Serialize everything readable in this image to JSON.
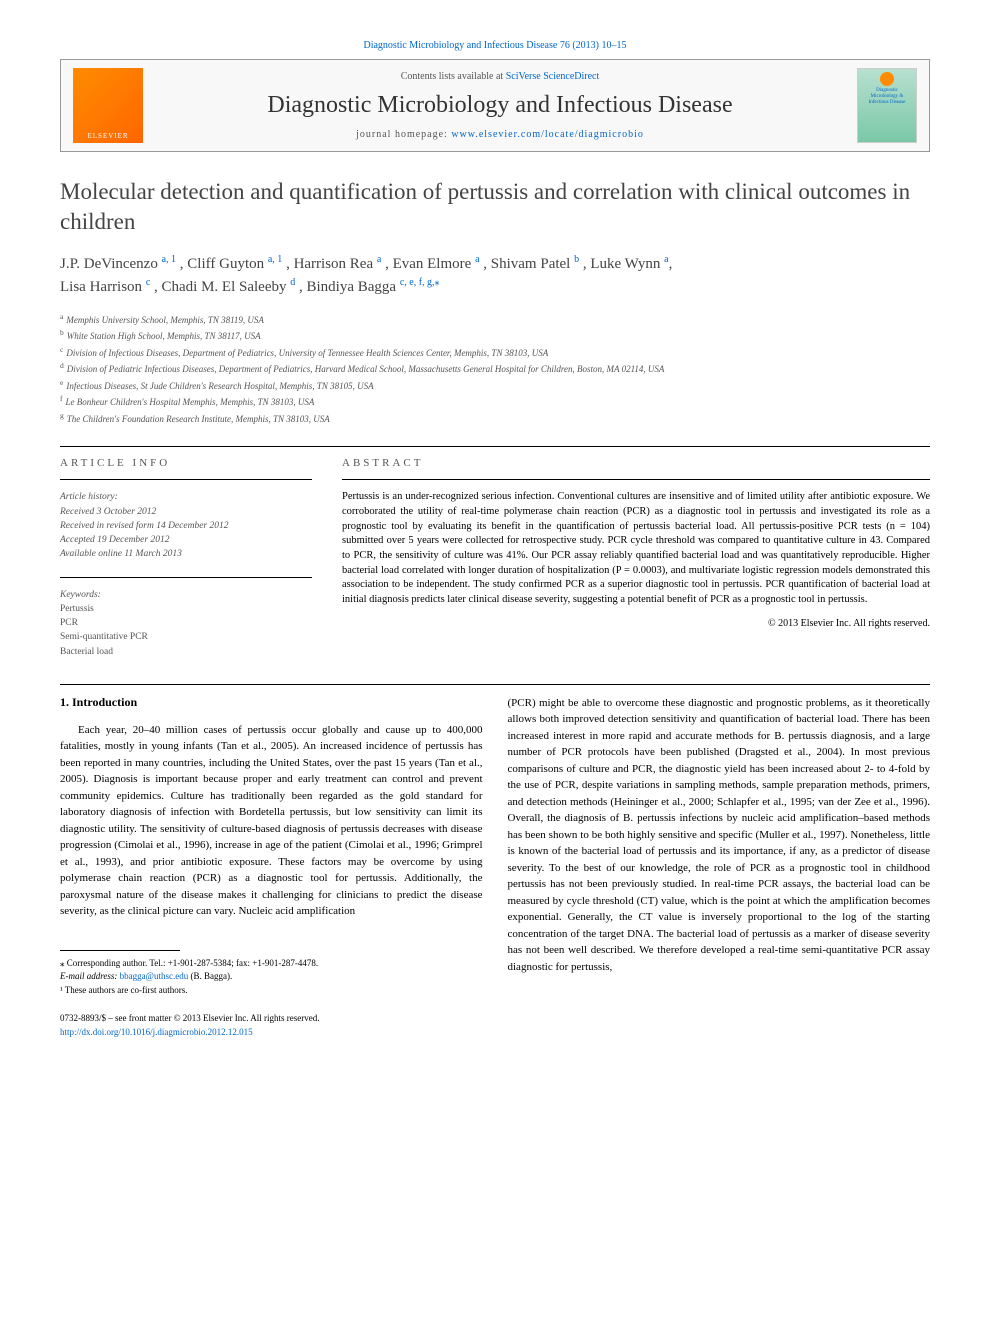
{
  "topLink": "Diagnostic Microbiology and Infectious Disease 76 (2013) 10–15",
  "header": {
    "elsevier": "ELSEVIER",
    "contentsPrefix": "Contents lists available at ",
    "contentsLink": "SciVerse ScienceDirect",
    "journalName": "Diagnostic Microbiology and Infectious Disease",
    "homepagePrefix": "journal homepage: ",
    "homepageLink": "www.elsevier.com/locate/diagmicrobio",
    "coverLine1": "Diagnostic",
    "coverLine2": "Microbiology &",
    "coverLine3": "Infectious Disease"
  },
  "title": "Molecular detection and quantification of pertussis and correlation with clinical outcomes in children",
  "authors": {
    "a1": "J.P. DeVincenzo ",
    "a1sup": "a, 1",
    "a2": ", Cliff Guyton ",
    "a2sup": "a, 1",
    "a3": ", Harrison Rea ",
    "a3sup": "a",
    "a4": ", Evan Elmore ",
    "a4sup": "a",
    "a5": ", Shivam Patel ",
    "a5sup": "b",
    "a6": ", Luke Wynn ",
    "a6sup": "a",
    "a7": "Lisa Harrison ",
    "a7sup": "c",
    "a8": ", Chadi M. El Saleeby ",
    "a8sup": "d",
    "a9": ", Bindiya Bagga ",
    "a9sup": "c, e, f, g,",
    "star": "⁎"
  },
  "affiliations": {
    "a": "Memphis University School, Memphis, TN 38119, USA",
    "b": "White Station High School, Memphis, TN 38117, USA",
    "c": "Division of Infectious Diseases, Department of Pediatrics, University of Tennessee Health Sciences Center, Memphis, TN 38103, USA",
    "d": "Division of Pediatric Infectious Diseases, Department of Pediatrics, Harvard Medical School, Massachusetts General Hospital for Children, Boston, MA 02114, USA",
    "e": "Infectious Diseases, St Jude Children's Research Hospital, Memphis, TN 38105, USA",
    "f": "Le Bonheur Children's Hospital Memphis, Memphis, TN 38103, USA",
    "g": "The Children's Foundation Research Institute, Memphis, TN 38103, USA"
  },
  "articleInfo": {
    "heading": "ARTICLE INFO",
    "historyLabel": "Article history:",
    "received": "Received 3 October 2012",
    "revised": "Received in revised form 14 December 2012",
    "accepted": "Accepted 19 December 2012",
    "online": "Available online 11 March 2013",
    "keywordsLabel": "Keywords:",
    "kw1": "Pertussis",
    "kw2": "PCR",
    "kw3": "Semi-quantitative PCR",
    "kw4": "Bacterial load"
  },
  "abstract": {
    "heading": "ABSTRACT",
    "text": "Pertussis is an under-recognized serious infection. Conventional cultures are insensitive and of limited utility after antibiotic exposure. We corroborated the utility of real-time polymerase chain reaction (PCR) as a diagnostic tool in pertussis and investigated its role as a prognostic tool by evaluating its benefit in the quantification of pertussis bacterial load. All pertussis-positive PCR tests (n = 104) submitted over 5 years were collected for retrospective study. PCR cycle threshold was compared to quantitative culture in 43. Compared to PCR, the sensitivity of culture was 41%. Our PCR assay reliably quantified bacterial load and was quantitatively reproducible. Higher bacterial load correlated with longer duration of hospitalization (P = 0.0003), and multivariate logistic regression models demonstrated this association to be independent. The study confirmed PCR as a superior diagnostic tool in pertussis. PCR quantification of bacterial load at initial diagnosis predicts later clinical disease severity, suggesting a potential benefit of PCR as a prognostic tool in pertussis.",
    "copyright": "© 2013 Elsevier Inc. All rights reserved."
  },
  "intro": {
    "heading": "1. Introduction",
    "leftPara": "Each year, 20–40 million cases of pertussis occur globally and cause up to 400,000 fatalities, mostly in young infants (Tan et al., 2005). An increased incidence of pertussis has been reported in many countries, including the United States, over the past 15 years (Tan et al., 2005). Diagnosis is important because proper and early treatment can control and prevent community epidemics. Culture has traditionally been regarded as the gold standard for laboratory diagnosis of infection with Bordetella pertussis, but low sensitivity can limit its diagnostic utility. The sensitivity of culture-based diagnosis of pertussis decreases with disease progression (Cimolai et al., 1996), increase in age of the patient (Cimolai et al., 1996; Grimprel et al., 1993), and prior antibiotic exposure. These factors may be overcome by using polymerase chain reaction (PCR) as a diagnostic tool for pertussis. Additionally, the paroxysmal nature of the disease makes it challenging for clinicians to predict the disease severity, as the clinical picture can vary. Nucleic acid amplification",
    "rightPara": "(PCR) might be able to overcome these diagnostic and prognostic problems, as it theoretically allows both improved detection sensitivity and quantification of bacterial load. There has been increased interest in more rapid and accurate methods for B. pertussis diagnosis, and a large number of PCR protocols have been published (Dragsted et al., 2004). In most previous comparisons of culture and PCR, the diagnostic yield has been increased about 2- to 4-fold by the use of PCR, despite variations in sampling methods, sample preparation methods, primers, and detection methods (Heininger et al., 2000; Schlapfer et al., 1995; van der Zee et al., 1996). Overall, the diagnosis of B. pertussis infections by nucleic acid amplification–based methods has been shown to be both highly sensitive and specific (Muller et al., 1997). Nonetheless, little is known of the bacterial load of pertussis and its importance, if any, as a predictor of disease severity. To the best of our knowledge, the role of PCR as a prognostic tool in childhood pertussis has not been previously studied. In real-time PCR assays, the bacterial load can be measured by cycle threshold (CT) value, which is the point at which the amplification becomes exponential. Generally, the CT value is inversely proportional to the log of the starting concentration of the target DNA. The bacterial load of pertussis as a marker of disease severity has not been well described. We therefore developed a real-time semi-quantitative PCR assay diagnostic for pertussis,"
  },
  "footer": {
    "corrAuthor": "⁎ Corresponding author. Tel.: +1-901-287-5384; fax: +1-901-287-4478.",
    "emailLabel": "E-mail address: ",
    "email": "bbagga@uthsc.edu",
    "emailSuffix": " (B. Bagga).",
    "cofirst": "¹ These authors are co-first authors.",
    "issn": "0732-8893/$ – see front matter © 2013 Elsevier Inc. All rights reserved.",
    "doi": "http://dx.doi.org/10.1016/j.diagmicrobio.2012.12.015"
  }
}
